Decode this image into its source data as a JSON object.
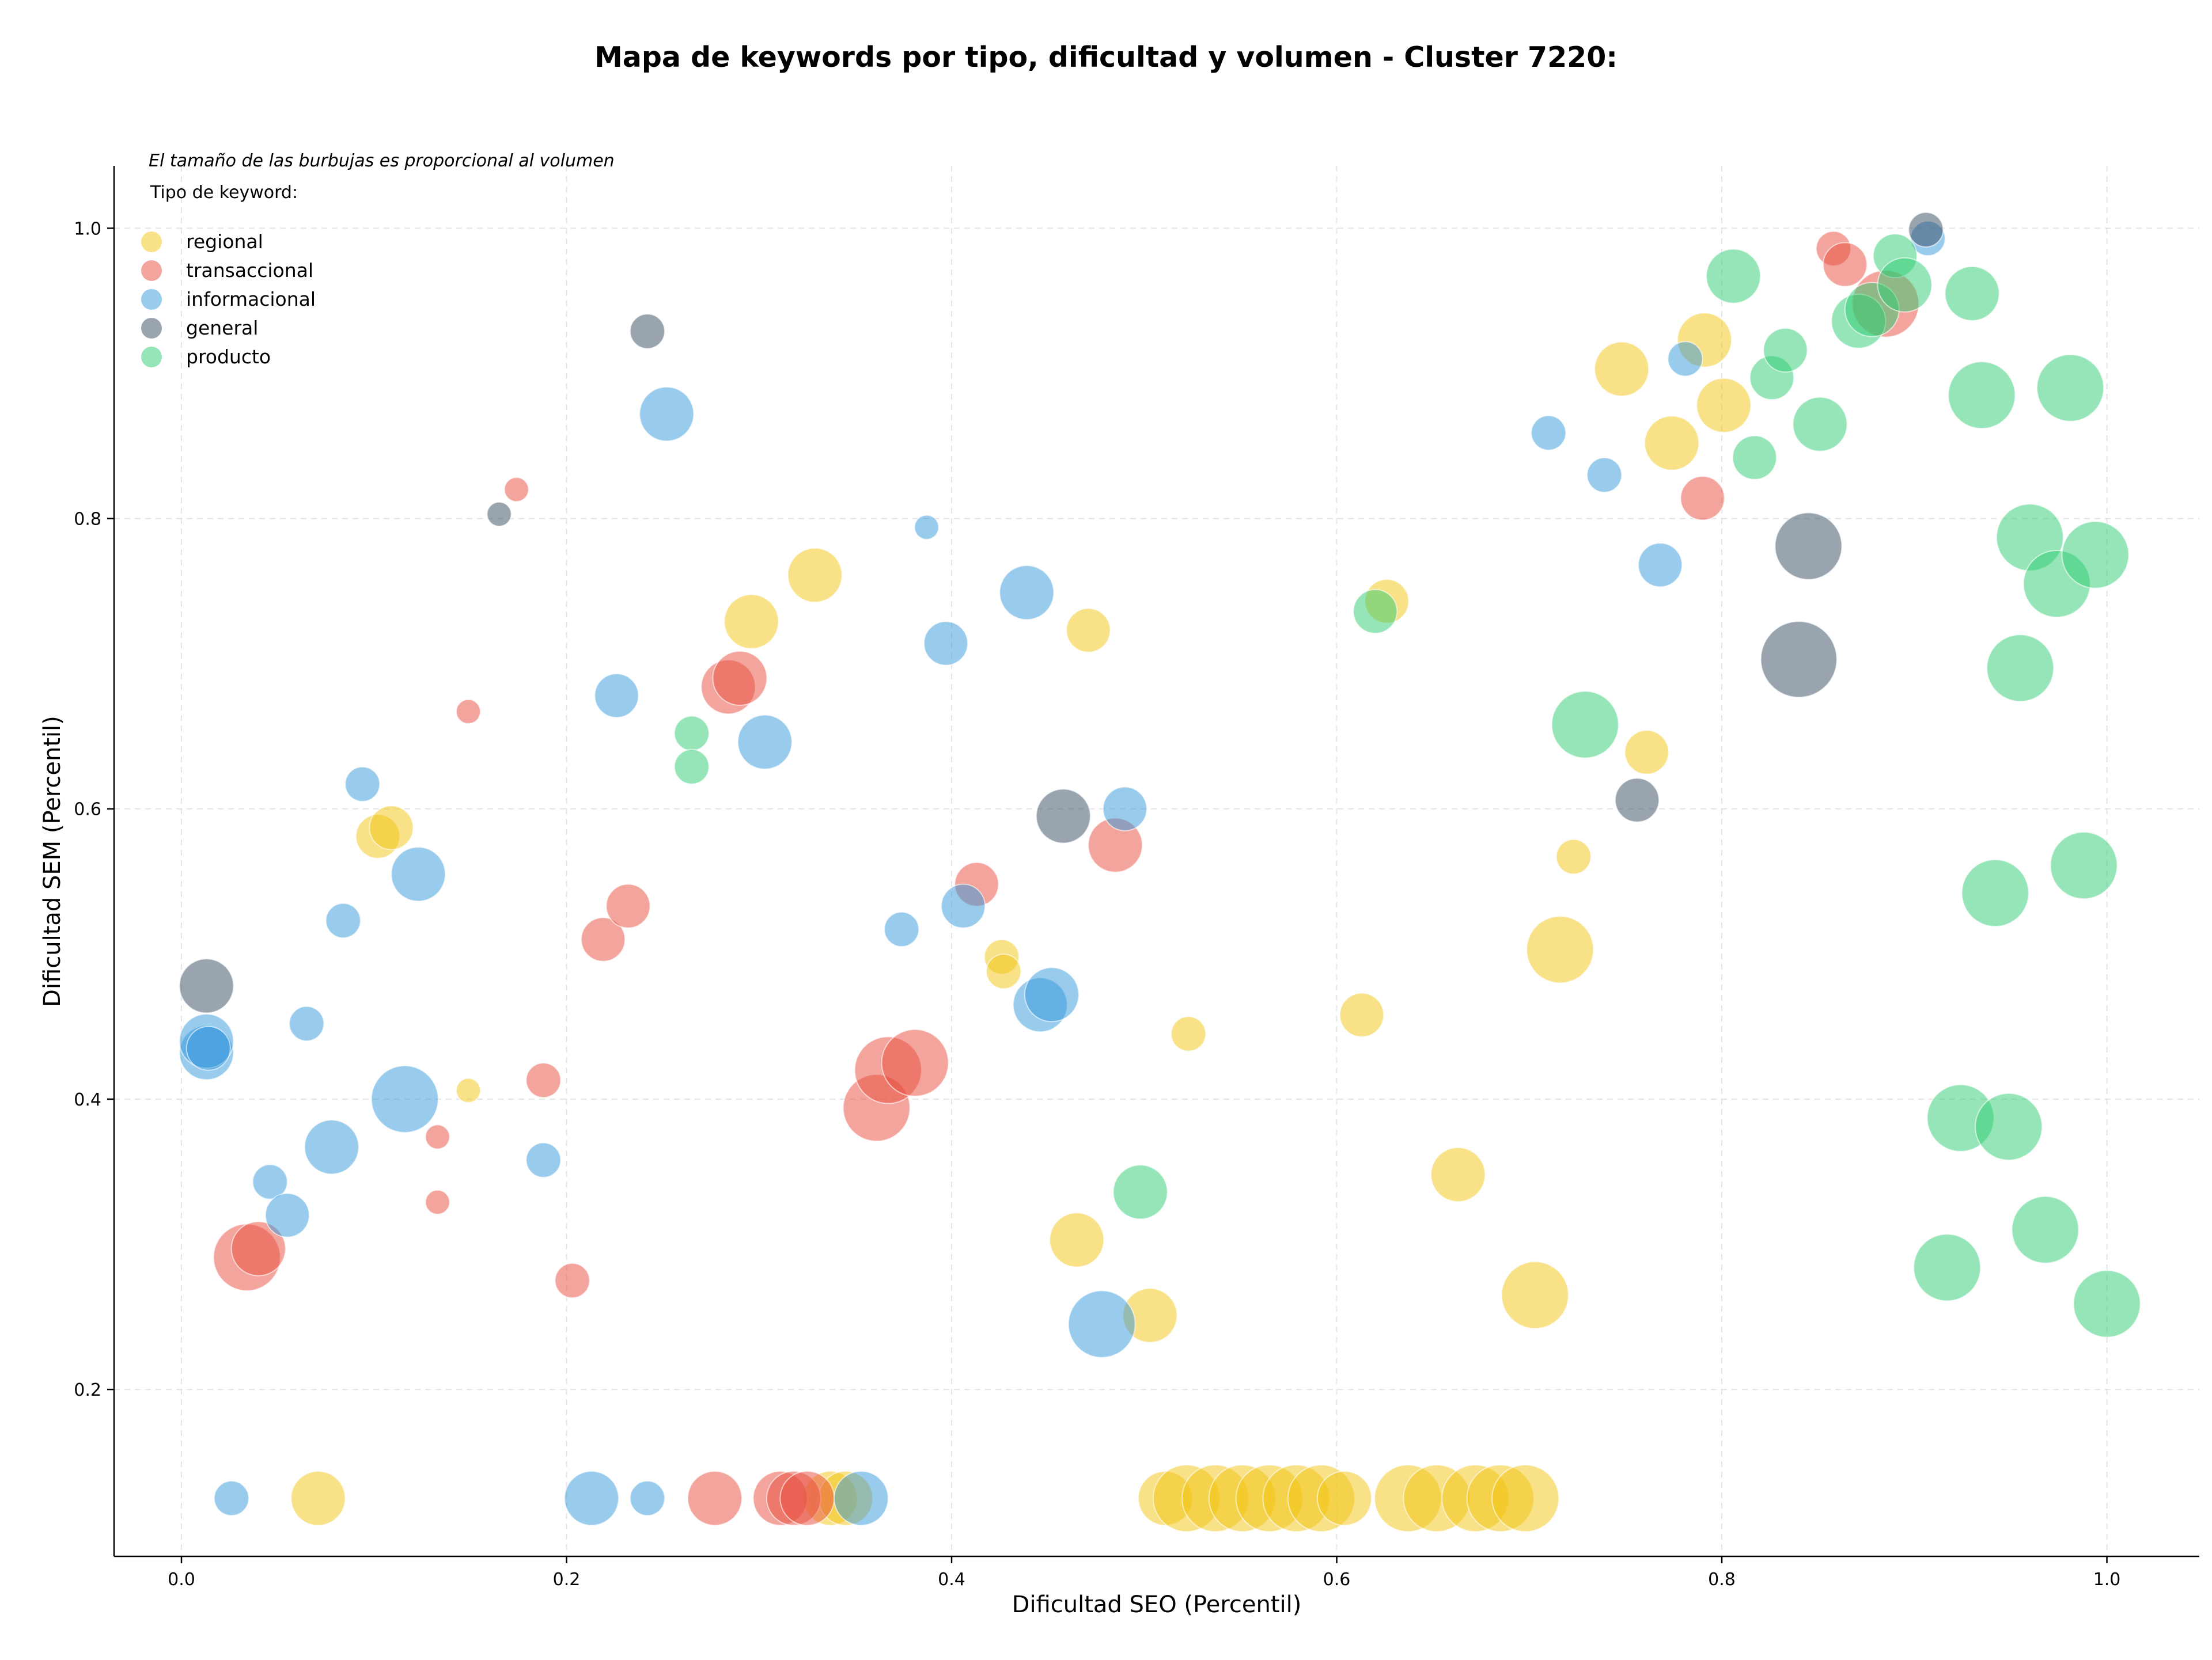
{
  "chart_data": {
    "type": "scatter",
    "title": "Mapa de keywords por tipo, dificultad y volumen - Cluster 7220:",
    "xlabel": "Dificultad SEO (Percentil)",
    "ylabel": "Dificultad SEM (Percentil)",
    "xlim": [
      -0.035,
      1.048
    ],
    "ylim": [
      0.085,
      1.043
    ],
    "xticks": [
      0.0,
      0.2,
      0.4,
      0.6,
      0.8,
      1.0
    ],
    "xtick_labels": [
      "0.0",
      "0.2",
      "0.4",
      "0.6",
      "0.8",
      "1.0"
    ],
    "yticks": [
      0.2,
      0.4,
      0.6,
      0.8,
      1.0
    ],
    "ytick_labels": [
      "0.2",
      "0.4",
      "0.6",
      "0.8",
      "1.0"
    ],
    "grid": true,
    "annotation": "El tamaño de las burbujas es proporcional al volumen",
    "legend": {
      "title": "Tipo de keyword:",
      "placement": "top-left"
    },
    "series": [
      {
        "name": "regional",
        "color": "#f1c40f",
        "points": [
          [
            0.071,
            0.125,
            4
          ],
          [
            0.102,
            0.581,
            3
          ],
          [
            0.109,
            0.587,
            3
          ],
          [
            0.149,
            0.406,
            1
          ],
          [
            0.296,
            0.729,
            4
          ],
          [
            0.329,
            0.761,
            4
          ],
          [
            0.337,
            0.125,
            4
          ],
          [
            0.345,
            0.125,
            4
          ],
          [
            0.426,
            0.498,
            2
          ],
          [
            0.427,
            0.488,
            2
          ],
          [
            0.471,
            0.723,
            3
          ],
          [
            0.465,
            0.303,
            4
          ],
          [
            0.503,
            0.251,
            4
          ],
          [
            0.523,
            0.445,
            2
          ],
          [
            0.511,
            0.125,
            4
          ],
          [
            0.522,
            0.125,
            5
          ],
          [
            0.537,
            0.125,
            5
          ],
          [
            0.551,
            0.125,
            5
          ],
          [
            0.565,
            0.125,
            5
          ],
          [
            0.579,
            0.125,
            5
          ],
          [
            0.592,
            0.125,
            5
          ],
          [
            0.604,
            0.125,
            4
          ],
          [
            0.613,
            0.458,
            3
          ],
          [
            0.626,
            0.743,
            3
          ],
          [
            0.637,
            0.125,
            5
          ],
          [
            0.652,
            0.125,
            5
          ],
          [
            0.663,
            0.348,
            4
          ],
          [
            0.672,
            0.125,
            5
          ],
          [
            0.685,
            0.125,
            5
          ],
          [
            0.698,
            0.125,
            5
          ],
          [
            0.703,
            0.265,
            5
          ],
          [
            0.716,
            0.503,
            5
          ],
          [
            0.723,
            0.567,
            2
          ],
          [
            0.748,
            0.903,
            4
          ],
          [
            0.761,
            0.639,
            3
          ],
          [
            0.774,
            0.852,
            4
          ],
          [
            0.791,
            0.923,
            4
          ],
          [
            0.801,
            0.878,
            4
          ]
        ]
      },
      {
        "name": "transaccional",
        "color": "#e74c3c",
        "points": [
          [
            0.034,
            0.291,
            5
          ],
          [
            0.04,
            0.297,
            4
          ],
          [
            0.133,
            0.329,
            1
          ],
          [
            0.133,
            0.374,
            1
          ],
          [
            0.149,
            0.667,
            1
          ],
          [
            0.174,
            0.82,
            1
          ],
          [
            0.188,
            0.413,
            2
          ],
          [
            0.203,
            0.275,
            2
          ],
          [
            0.219,
            0.51,
            3
          ],
          [
            0.232,
            0.533,
            3
          ],
          [
            0.277,
            0.125,
            4
          ],
          [
            0.284,
            0.684,
            4
          ],
          [
            0.29,
            0.69,
            4
          ],
          [
            0.311,
            0.125,
            4
          ],
          [
            0.318,
            0.125,
            4
          ],
          [
            0.325,
            0.125,
            4
          ],
          [
            0.361,
            0.394,
            5
          ],
          [
            0.367,
            0.42,
            5
          ],
          [
            0.381,
            0.425,
            5
          ],
          [
            0.413,
            0.548,
            3
          ],
          [
            0.485,
            0.575,
            4
          ],
          [
            0.79,
            0.814,
            3
          ],
          [
            0.858,
            0.986,
            2
          ],
          [
            0.864,
            0.975,
            3
          ],
          [
            0.885,
            0.948,
            5
          ]
        ]
      },
      {
        "name": "informacional",
        "color": "#3498db",
        "points": [
          [
            0.013,
            0.432,
            4
          ],
          [
            0.013,
            0.44,
            4
          ],
          [
            0.014,
            0.435,
            3
          ],
          [
            0.026,
            0.125,
            2
          ],
          [
            0.046,
            0.343,
            2
          ],
          [
            0.055,
            0.32,
            3
          ],
          [
            0.065,
            0.452,
            2
          ],
          [
            0.078,
            0.367,
            4
          ],
          [
            0.084,
            0.523,
            2
          ],
          [
            0.094,
            0.617,
            2
          ],
          [
            0.116,
            0.4,
            5
          ],
          [
            0.123,
            0.555,
            4
          ],
          [
            0.188,
            0.358,
            2
          ],
          [
            0.213,
            0.125,
            4
          ],
          [
            0.226,
            0.678,
            3
          ],
          [
            0.242,
            0.125,
            2
          ],
          [
            0.252,
            0.872,
            4
          ],
          [
            0.303,
            0.646,
            4
          ],
          [
            0.353,
            0.125,
            4
          ],
          [
            0.374,
            0.517,
            2
          ],
          [
            0.387,
            0.794,
            1
          ],
          [
            0.397,
            0.714,
            3
          ],
          [
            0.406,
            0.533,
            3
          ],
          [
            0.439,
            0.749,
            4
          ],
          [
            0.446,
            0.465,
            4
          ],
          [
            0.452,
            0.472,
            4
          ],
          [
            0.478,
            0.245,
            5
          ],
          [
            0.49,
            0.6,
            3
          ],
          [
            0.71,
            0.859,
            2
          ],
          [
            0.739,
            0.83,
            2
          ],
          [
            0.768,
            0.768,
            3
          ],
          [
            0.781,
            0.91,
            2
          ],
          [
            0.907,
            0.993,
            2
          ]
        ]
      },
      {
        "name": "general",
        "color": "#34495e",
        "points": [
          [
            0.013,
            0.478,
            4
          ],
          [
            0.165,
            0.803,
            1
          ],
          [
            0.242,
            0.929,
            2
          ],
          [
            0.458,
            0.595,
            4
          ],
          [
            0.756,
            0.606,
            3
          ],
          [
            0.84,
            0.703,
            6
          ],
          [
            0.845,
            0.781,
            5
          ],
          [
            0.906,
            0.999,
            2
          ]
        ]
      },
      {
        "name": "producto",
        "color": "#2ecc71",
        "points": [
          [
            0.265,
            0.652,
            2
          ],
          [
            0.265,
            0.629,
            2
          ],
          [
            0.498,
            0.336,
            4
          ],
          [
            0.62,
            0.736,
            3
          ],
          [
            0.729,
            0.658,
            5
          ],
          [
            0.806,
            0.967,
            4
          ],
          [
            0.817,
            0.842,
            3
          ],
          [
            0.826,
            0.897,
            3
          ],
          [
            0.833,
            0.916,
            3
          ],
          [
            0.851,
            0.865,
            4
          ],
          [
            0.871,
            0.936,
            4
          ],
          [
            0.878,
            0.944,
            4
          ],
          [
            0.89,
            0.981,
            3
          ],
          [
            0.895,
            0.961,
            4
          ],
          [
            0.93,
            0.955,
            4
          ],
          [
            0.917,
            0.284,
            5
          ],
          [
            0.924,
            0.387,
            5
          ],
          [
            0.935,
            0.885,
            5
          ],
          [
            0.942,
            0.542,
            5
          ],
          [
            0.949,
            0.381,
            5
          ],
          [
            0.955,
            0.697,
            5
          ],
          [
            0.96,
            0.787,
            5
          ],
          [
            0.968,
            0.31,
            5
          ],
          [
            0.974,
            0.755,
            5
          ],
          [
            0.981,
            0.89,
            5
          ],
          [
            0.988,
            0.561,
            5
          ],
          [
            0.994,
            0.775,
            5
          ],
          [
            1.0,
            0.259,
            5
          ]
        ]
      }
    ]
  }
}
